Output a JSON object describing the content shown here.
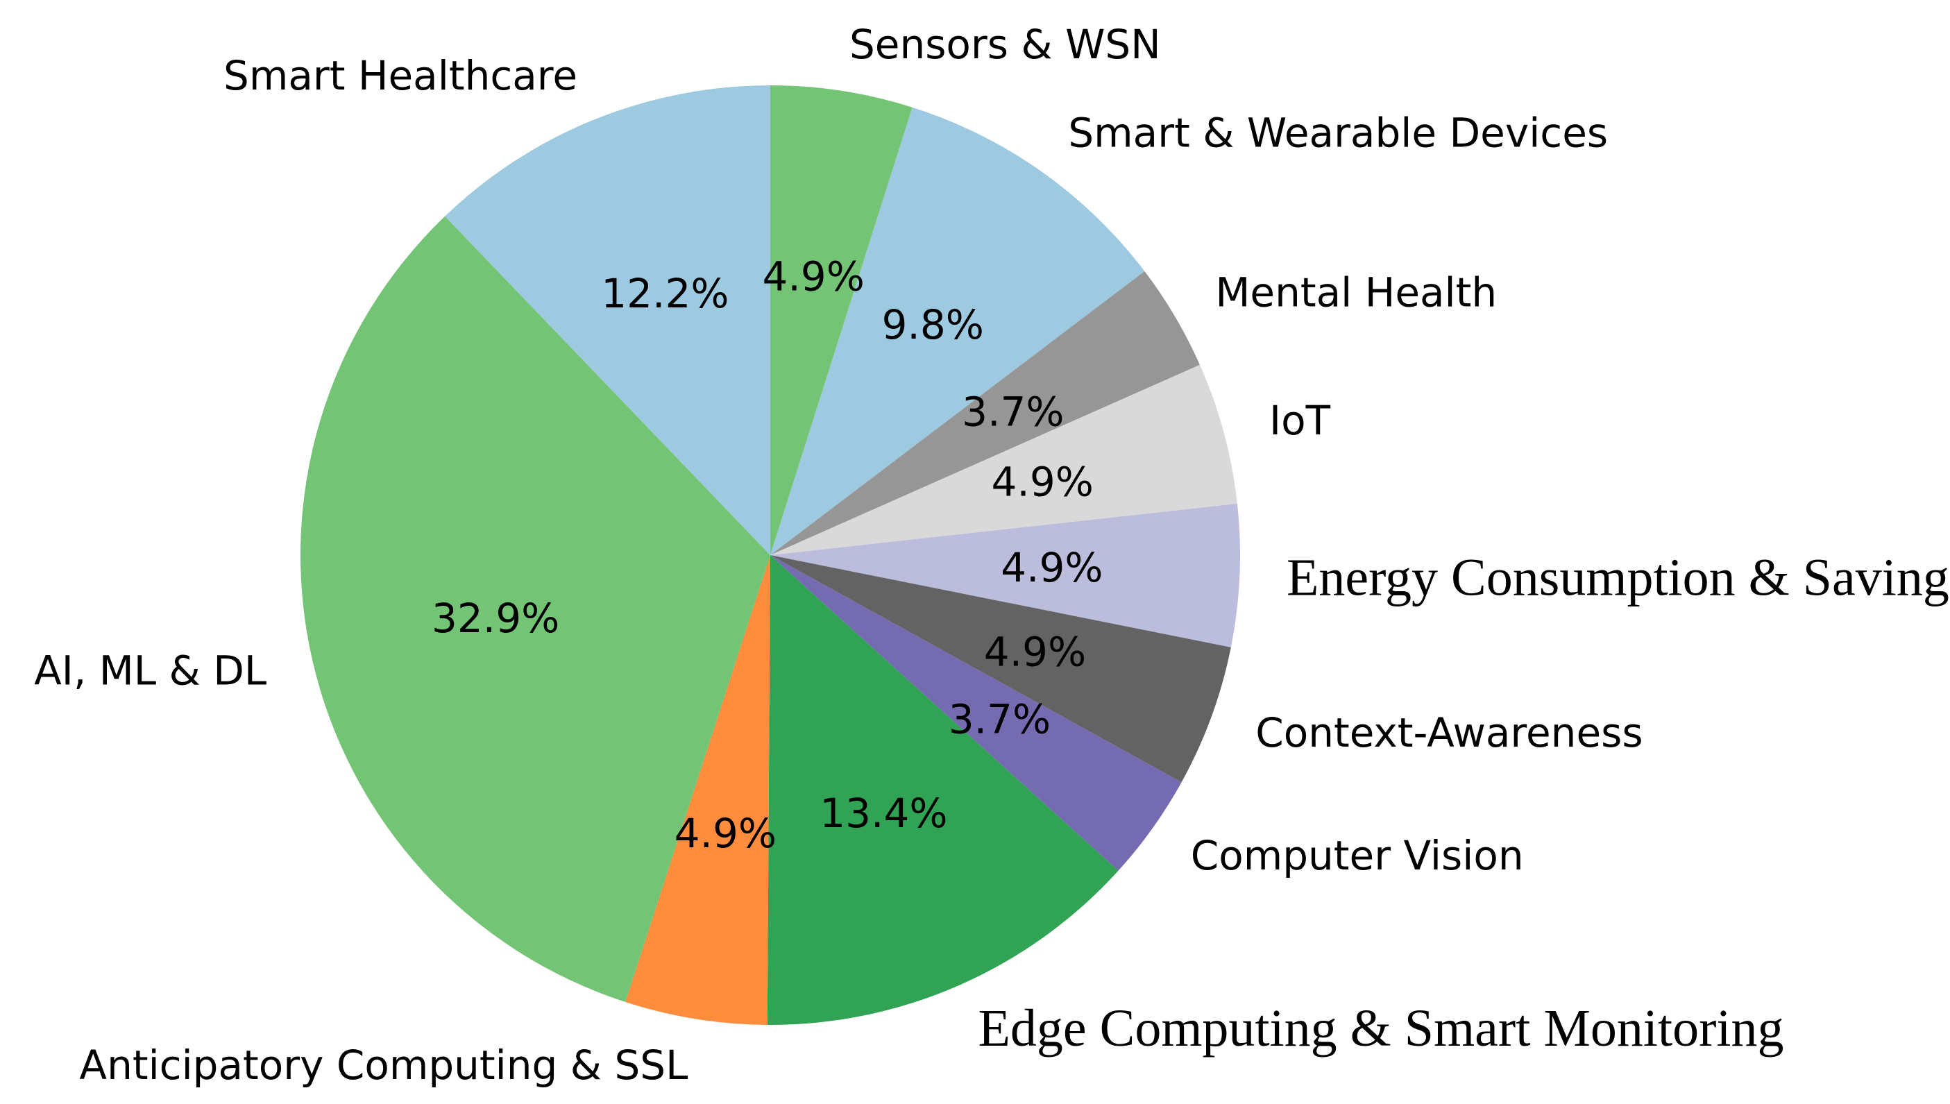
{
  "chart_data": {
    "type": "pie",
    "title": "",
    "start_angle_deg": 90,
    "direction": "clockwise",
    "slices": [
      {
        "label": "Sensors & WSN",
        "value": 4.9,
        "pct_text": "4.9%",
        "color": "#74c476",
        "label_style": "sans"
      },
      {
        "label": "Smart & Wearable Devices",
        "value": 9.8,
        "pct_text": "9.8%",
        "color": "#9ecae1",
        "label_style": "sans"
      },
      {
        "label": "Mental Health",
        "value": 3.7,
        "pct_text": "3.7%",
        "color": "#969696",
        "label_style": "sans"
      },
      {
        "label": "IoT",
        "value": 4.9,
        "pct_text": "4.9%",
        "color": "#d9d9d9",
        "label_style": "sans"
      },
      {
        "label": "Energy Consumption & Saving",
        "value": 4.9,
        "pct_text": "4.9%",
        "color": "#bcbddc",
        "label_style": "serif"
      },
      {
        "label": "Context-Awareness",
        "value": 4.9,
        "pct_text": "4.9%",
        "color": "#636363",
        "label_style": "sans"
      },
      {
        "label": "Computer Vision",
        "value": 3.7,
        "pct_text": "3.7%",
        "color": "#756bb1",
        "label_style": "sans"
      },
      {
        "label": "Edge Computing & Smart Monitoring",
        "value": 13.4,
        "pct_text": "13.4%",
        "color": "#31a354",
        "label_style": "serif"
      },
      {
        "label": "Anticipatory Computing & SSL",
        "value": 4.9,
        "pct_text": "4.9%",
        "color": "#fd8d3c",
        "label_style": "sans"
      },
      {
        "label": "AI, ML & DL",
        "value": 32.9,
        "pct_text": "32.9%",
        "color": "#74c476",
        "label_style": "sans"
      },
      {
        "label": "Smart Healthcare",
        "value": 12.2,
        "pct_text": "12.2%",
        "color": "#9ecae1",
        "label_style": "sans"
      }
    ]
  }
}
